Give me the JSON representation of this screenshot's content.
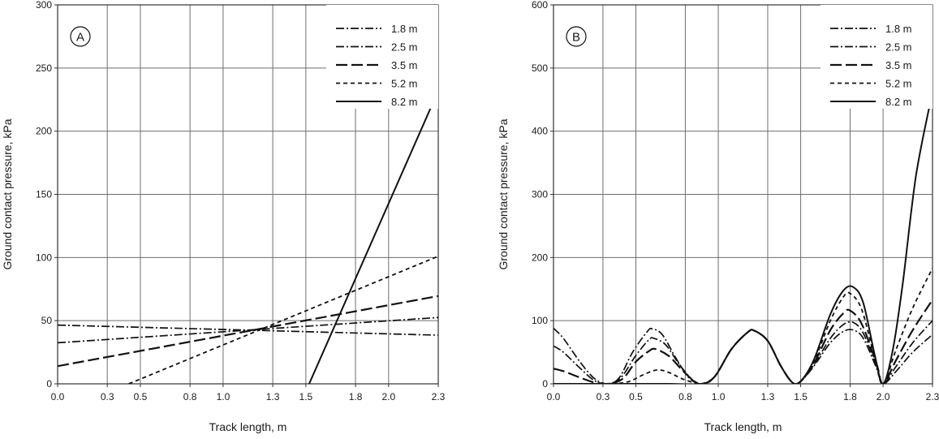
{
  "chart_data": [
    {
      "type": "line",
      "panel_label": "A",
      "xlabel": "Track length, m",
      "ylabel": "Ground contact pressure, kPa",
      "xlim": [
        0.0,
        2.3
      ],
      "ylim": [
        0,
        300
      ],
      "x_ticks": [
        "0.0",
        "0.3",
        "0.5",
        "0.8",
        "1.0",
        "1.3",
        "1.5",
        "1.8",
        "2.0",
        "2.3"
      ],
      "x_tick_values": [
        0.0,
        0.3,
        0.5,
        0.8,
        1.0,
        1.3,
        1.5,
        1.8,
        2.0,
        2.3
      ],
      "y_ticks": [
        "0",
        "50",
        "100",
        "150",
        "200",
        "250",
        "300"
      ],
      "y_tick_values": [
        0,
        50,
        100,
        150,
        200,
        250,
        300
      ],
      "grid": true,
      "legend_position": "top-right",
      "series": [
        {
          "name": "1.8 m",
          "dash": "dash-dot",
          "points": [
            [
              0.0,
              46.5
            ],
            [
              2.3,
              38.5
            ]
          ]
        },
        {
          "name": "2.5 m",
          "dash": "dash-dot",
          "points": [
            [
              0.0,
              32.5
            ],
            [
              2.3,
              52.5
            ]
          ]
        },
        {
          "name": "3.5 m",
          "dash": "long-dash",
          "points": [
            [
              0.0,
              14
            ],
            [
              2.3,
              69.5
            ]
          ]
        },
        {
          "name": "5.2 m",
          "dash": "short-dash",
          "points": [
            [
              0.43,
              0
            ],
            [
              2.3,
              101
            ]
          ]
        },
        {
          "name": "8.2 m",
          "dash": "solid",
          "points": [
            [
              1.52,
              0
            ],
            [
              2.3,
              232
            ]
          ]
        }
      ]
    },
    {
      "type": "line",
      "panel_label": "B",
      "xlabel": "Track length, m",
      "ylabel": "Ground contact pressure, kPa",
      "xlim": [
        0.0,
        2.3
      ],
      "ylim": [
        0,
        600
      ],
      "x_ticks": [
        "0.0",
        "0.3",
        "0.5",
        "0.8",
        "1.0",
        "1.3",
        "1.5",
        "1.8",
        "2.0",
        "2.3"
      ],
      "x_tick_values": [
        0.0,
        0.3,
        0.5,
        0.8,
        1.0,
        1.3,
        1.5,
        1.8,
        2.0,
        2.3
      ],
      "y_ticks": [
        "0",
        "100",
        "200",
        "300",
        "400",
        "500",
        "600"
      ],
      "y_tick_values": [
        0,
        100,
        200,
        300,
        400,
        500,
        600
      ],
      "grid": true,
      "legend_position": "top-right",
      "series": [
        {
          "name": "1.8 m",
          "dash": "dash-dot",
          "points": [
            [
              0.0,
              88
            ],
            [
              0.06,
              72
            ],
            [
              0.16,
              35
            ],
            [
              0.25,
              8
            ],
            [
              0.33,
              0
            ],
            [
              0.4,
              10
            ],
            [
              0.48,
              50
            ],
            [
              0.57,
              83
            ],
            [
              0.6,
              87
            ],
            [
              0.66,
              78
            ],
            [
              0.74,
              42
            ],
            [
              0.82,
              10
            ],
            [
              0.9,
              0
            ],
            [
              0.98,
              12
            ],
            [
              1.08,
              55
            ],
            [
              1.18,
              82
            ],
            [
              1.22,
              84
            ],
            [
              1.3,
              68
            ],
            [
              1.38,
              28
            ],
            [
              1.45,
              2
            ],
            [
              1.5,
              4
            ],
            [
              1.58,
              28
            ],
            [
              1.68,
              65
            ],
            [
              1.76,
              83
            ],
            [
              1.82,
              85
            ],
            [
              1.88,
              72
            ],
            [
              1.96,
              25
            ],
            [
              2.0,
              0
            ],
            [
              2.08,
              20
            ],
            [
              2.18,
              50
            ],
            [
              2.3,
              78
            ]
          ]
        },
        {
          "name": "2.5 m",
          "dash": "dash-dot",
          "points": [
            [
              0.0,
              60
            ],
            [
              0.06,
              50
            ],
            [
              0.16,
              25
            ],
            [
              0.25,
              5
            ],
            [
              0.33,
              0
            ],
            [
              0.41,
              10
            ],
            [
              0.5,
              45
            ],
            [
              0.58,
              70
            ],
            [
              0.61,
              72
            ],
            [
              0.68,
              62
            ],
            [
              0.76,
              32
            ],
            [
              0.84,
              7
            ],
            [
              0.9,
              0
            ],
            [
              0.98,
              12
            ],
            [
              1.08,
              55
            ],
            [
              1.18,
              82
            ],
            [
              1.22,
              84
            ],
            [
              1.3,
              68
            ],
            [
              1.38,
              28
            ],
            [
              1.45,
              2
            ],
            [
              1.5,
              4
            ],
            [
              1.58,
              30
            ],
            [
              1.68,
              72
            ],
            [
              1.76,
              94
            ],
            [
              1.82,
              97
            ],
            [
              1.88,
              80
            ],
            [
              1.96,
              28
            ],
            [
              2.0,
              0
            ],
            [
              2.08,
              28
            ],
            [
              2.18,
              65
            ],
            [
              2.3,
              100
            ]
          ]
        },
        {
          "name": "3.5 m",
          "dash": "long-dash",
          "points": [
            [
              0.0,
              24
            ],
            [
              0.06,
              20
            ],
            [
              0.16,
              10
            ],
            [
              0.25,
              2
            ],
            [
              0.33,
              0
            ],
            [
              0.42,
              8
            ],
            [
              0.5,
              35
            ],
            [
              0.58,
              52
            ],
            [
              0.62,
              55
            ],
            [
              0.7,
              44
            ],
            [
              0.78,
              22
            ],
            [
              0.85,
              5
            ],
            [
              0.9,
              0
            ],
            [
              0.98,
              12
            ],
            [
              1.08,
              55
            ],
            [
              1.18,
              82
            ],
            [
              1.22,
              84
            ],
            [
              1.3,
              68
            ],
            [
              1.38,
              28
            ],
            [
              1.45,
              2
            ],
            [
              1.5,
              4
            ],
            [
              1.58,
              32
            ],
            [
              1.68,
              85
            ],
            [
              1.76,
              112
            ],
            [
              1.8,
              116
            ],
            [
              1.87,
              95
            ],
            [
              1.96,
              32
            ],
            [
              2.0,
              0
            ],
            [
              2.08,
              38
            ],
            [
              2.18,
              85
            ],
            [
              2.3,
              133
            ]
          ]
        },
        {
          "name": "5.2 m",
          "dash": "short-dash",
          "points": [
            [
              0.0,
              0
            ],
            [
              0.1,
              0
            ],
            [
              0.2,
              0
            ],
            [
              0.33,
              0
            ],
            [
              0.45,
              3
            ],
            [
              0.55,
              15
            ],
            [
              0.63,
              22
            ],
            [
              0.7,
              18
            ],
            [
              0.78,
              8
            ],
            [
              0.85,
              2
            ],
            [
              0.9,
              0
            ],
            [
              0.98,
              12
            ],
            [
              1.08,
              55
            ],
            [
              1.18,
              82
            ],
            [
              1.22,
              84
            ],
            [
              1.3,
              68
            ],
            [
              1.38,
              28
            ],
            [
              1.45,
              2
            ],
            [
              1.5,
              4
            ],
            [
              1.58,
              35
            ],
            [
              1.68,
              100
            ],
            [
              1.76,
              138
            ],
            [
              1.8,
              143
            ],
            [
              1.87,
              118
            ],
            [
              1.95,
              40
            ],
            [
              2.0,
              0
            ],
            [
              2.08,
              55
            ],
            [
              2.18,
              120
            ],
            [
              2.3,
              183
            ]
          ]
        },
        {
          "name": "8.2 m",
          "dash": "solid",
          "points": [
            [
              0.0,
              0
            ],
            [
              0.2,
              0
            ],
            [
              0.33,
              0
            ],
            [
              0.5,
              0
            ],
            [
              0.7,
              0
            ],
            [
              0.9,
              0
            ],
            [
              0.98,
              12
            ],
            [
              1.08,
              55
            ],
            [
              1.18,
              82
            ],
            [
              1.22,
              84
            ],
            [
              1.3,
              68
            ],
            [
              1.38,
              28
            ],
            [
              1.45,
              2
            ],
            [
              1.5,
              4
            ],
            [
              1.58,
              38
            ],
            [
              1.68,
              110
            ],
            [
              1.76,
              148
            ],
            [
              1.82,
              153
            ],
            [
              1.88,
              128
            ],
            [
              1.95,
              45
            ],
            [
              2.0,
              0
            ],
            [
              2.06,
              55
            ],
            [
              2.12,
              160
            ],
            [
              2.2,
              330
            ],
            [
              2.3,
              462
            ]
          ]
        }
      ]
    }
  ]
}
